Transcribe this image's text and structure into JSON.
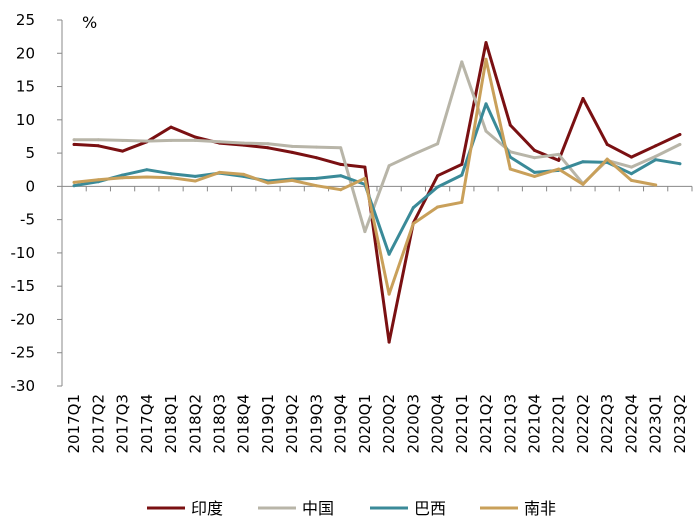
{
  "chart_data": {
    "type": "line",
    "unit_label": "%",
    "ylim": [
      -30,
      25
    ],
    "yticks": [
      25,
      20,
      15,
      10,
      5,
      0,
      -5,
      -10,
      -15,
      -20,
      -25,
      -30
    ],
    "categories": [
      "2017Q1",
      "2017Q2",
      "2017Q3",
      "2017Q4",
      "2018Q1",
      "2018Q2",
      "2018Q3",
      "2018Q4",
      "2019Q1",
      "2019Q2",
      "2019Q3",
      "2019Q4",
      "2020Q1",
      "2020Q2",
      "2020Q3",
      "2020Q4",
      "2021Q1",
      "2021Q2",
      "2021Q3",
      "2021Q4",
      "2022Q1",
      "2022Q2",
      "2022Q3",
      "2022Q4",
      "2023Q1",
      "2023Q2"
    ],
    "series": [
      {
        "name": "印度",
        "color": "#7a1012",
        "values": [
          6.3,
          6.1,
          5.3,
          6.7,
          8.9,
          7.4,
          6.5,
          6.2,
          5.8,
          5.1,
          4.3,
          3.3,
          2.9,
          -23.4,
          -5.5,
          1.6,
          3.3,
          21.6,
          9.2,
          5.4,
          3.9,
          13.2,
          6.3,
          4.4,
          6.1,
          7.8
        ]
      },
      {
        "name": "中国",
        "color": "#b8b5a8",
        "values": [
          7.0,
          7.0,
          6.9,
          6.8,
          6.9,
          6.9,
          6.7,
          6.5,
          6.4,
          6.0,
          5.9,
          5.8,
          -6.8,
          3.1,
          4.8,
          6.4,
          18.7,
          8.3,
          5.2,
          4.3,
          4.8,
          0.4,
          3.9,
          2.9,
          4.5,
          6.3
        ]
      },
      {
        "name": "巴西",
        "color": "#3a8a98",
        "values": [
          0.1,
          0.7,
          1.7,
          2.5,
          1.9,
          1.5,
          2.0,
          1.5,
          0.8,
          1.1,
          1.2,
          1.6,
          0.3,
          -10.2,
          -3.2,
          -0.1,
          1.7,
          12.4,
          4.4,
          2.1,
          2.4,
          3.7,
          3.6,
          1.9,
          4.0,
          3.4
        ]
      },
      {
        "name": "南非",
        "color": "#c9a05a",
        "values": [
          0.6,
          1.0,
          1.3,
          1.4,
          1.3,
          0.8,
          2.1,
          1.8,
          0.5,
          0.9,
          0.1,
          -0.5,
          1.2,
          -16.2,
          -5.6,
          -3.1,
          -2.4,
          19.1,
          2.6,
          1.5,
          2.6,
          0.3,
          4.1,
          0.9,
          0.2,
          null
        ]
      }
    ]
  }
}
